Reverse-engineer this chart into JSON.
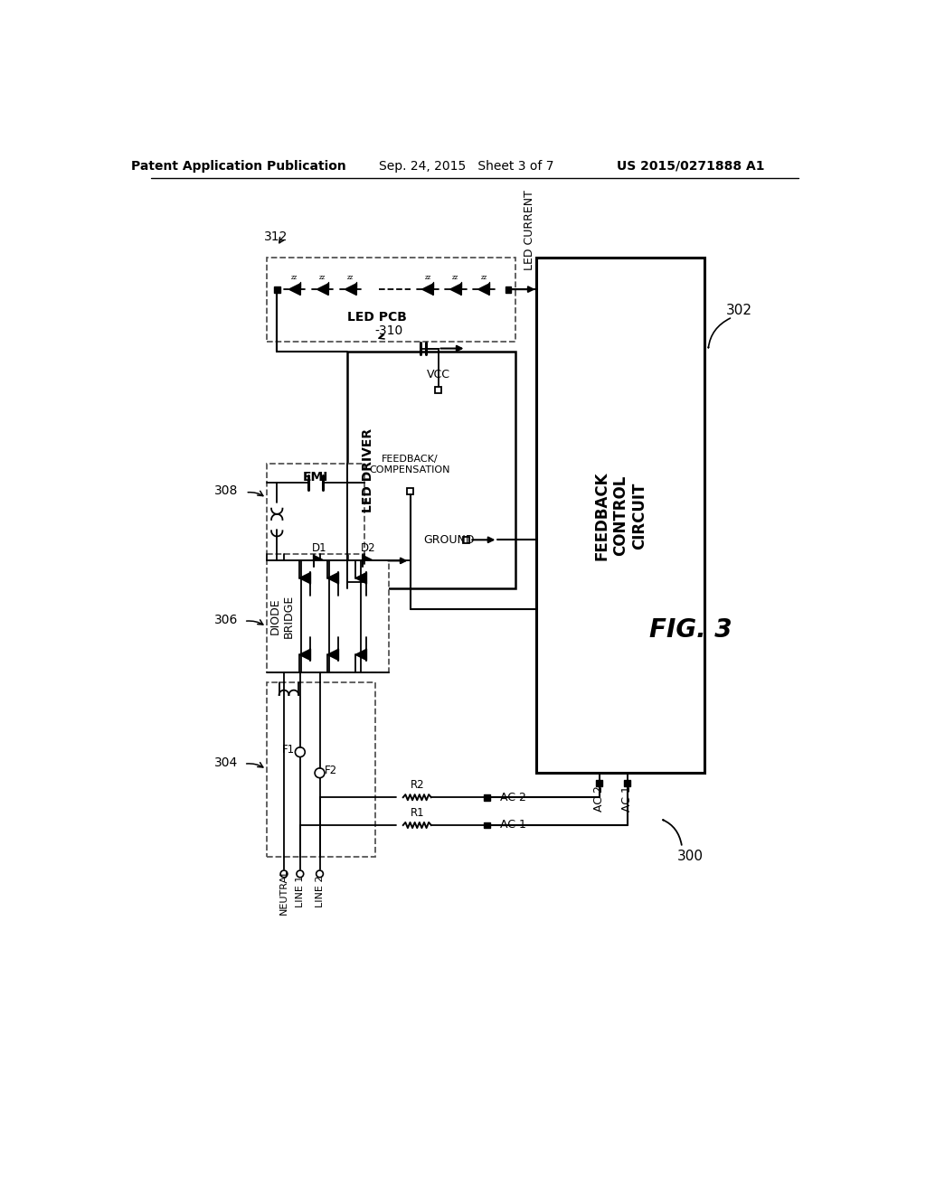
{
  "title_left": "Patent Application Publication",
  "title_center": "Sep. 24, 2015 Sheet 3 of 7",
  "title_right": "US 2015/0271888 A1",
  "fig_label": "FIG. 3",
  "background": "#ffffff"
}
